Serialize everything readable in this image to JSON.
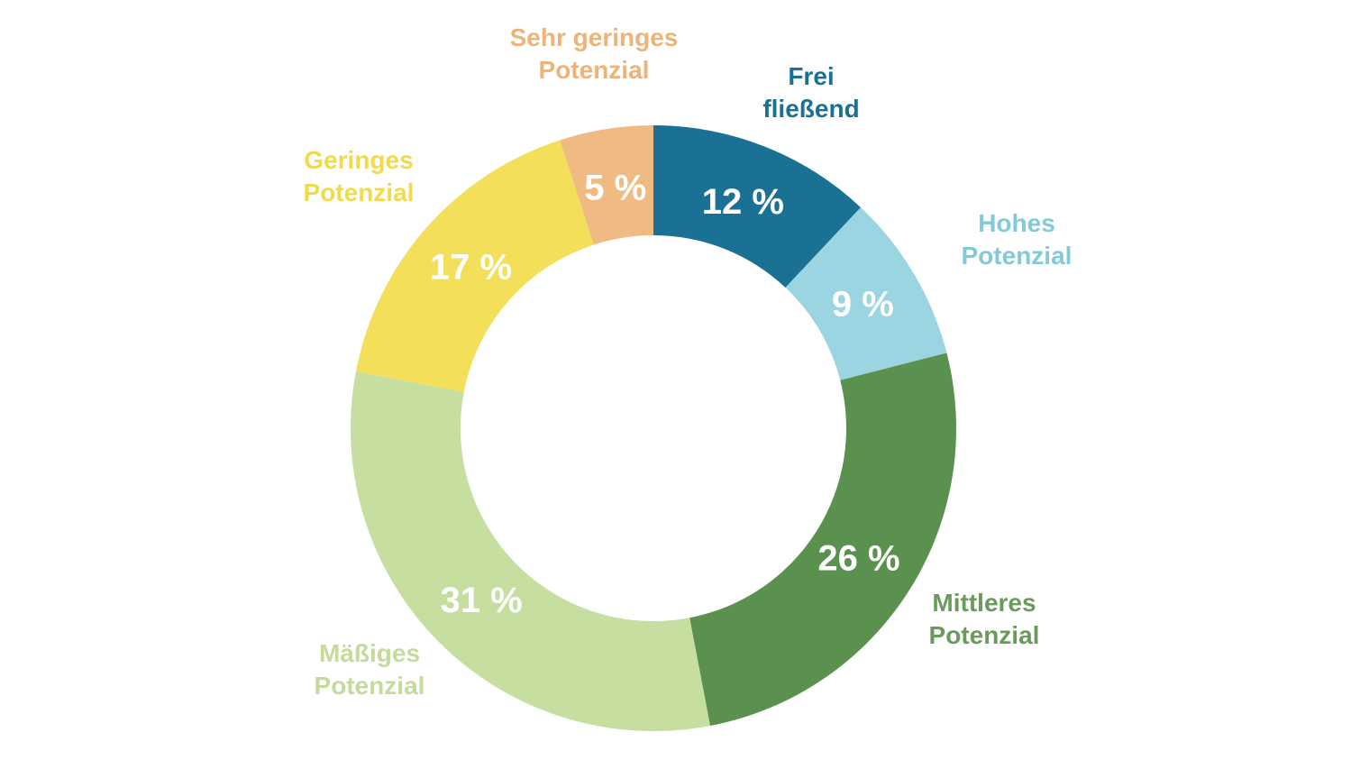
{
  "chart_data": {
    "type": "pie",
    "variant": "donut",
    "start_angle_deg": 0,
    "direction": "clockwise",
    "slices": [
      {
        "key": "frei",
        "label_lines": [
          "Frei",
          "fließend"
        ],
        "value": 12,
        "value_label": "12 %",
        "color": "#1b7194",
        "label_color": "#1b7194"
      },
      {
        "key": "hohes",
        "label_lines": [
          "Hohes",
          "Potenzial"
        ],
        "value": 9,
        "value_label": "9 %",
        "color": "#9ad5e1",
        "label_color": "#85c9d7"
      },
      {
        "key": "mittleres",
        "label_lines": [
          "Mittleres",
          "Potenzial"
        ],
        "value": 26,
        "value_label": "26 %",
        "color": "#5a914e",
        "label_color": "#6a9a5c"
      },
      {
        "key": "maessiges",
        "label_lines": [
          "Mäßiges",
          "Potenzial"
        ],
        "value": 31,
        "value_label": "31 %",
        "color": "#c6dfa1",
        "label_color": "#c3dc9c"
      },
      {
        "key": "geringes",
        "label_lines": [
          "Geringes",
          "Potenzial"
        ],
        "value": 17,
        "value_label": "17 %",
        "color": "#f3df59",
        "label_color": "#f0da4e"
      },
      {
        "key": "sehr_geringes",
        "label_lines": [
          "Sehr geringes",
          "Potenzial"
        ],
        "value": 5,
        "value_label": "5 %",
        "color": "#efbb82",
        "label_color": "#edb47a"
      }
    ]
  }
}
